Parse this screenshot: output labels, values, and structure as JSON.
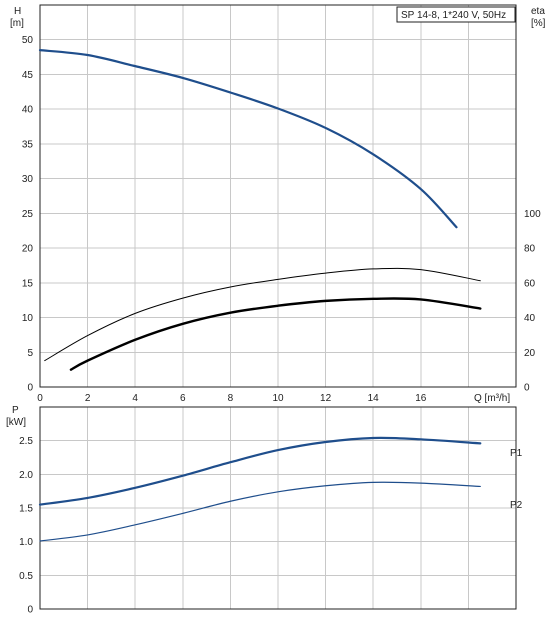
{
  "chart_data": [
    {
      "type": "line",
      "title": "SP 14-8, 1*240 V, 50Hz",
      "xlabel": "Q [m³/h]",
      "ylabel_left_symbol": "H",
      "ylabel_left_unit": "[m]",
      "ylabel_right_symbol": "eta",
      "ylabel_right_unit": "[%]",
      "xlim": [
        0,
        20
      ],
      "ylim_left": [
        0,
        55
      ],
      "ylim_right": [
        0,
        220
      ],
      "x_ticks": [
        "0",
        "2",
        "4",
        "6",
        "8",
        "10",
        "12",
        "14",
        "16"
      ],
      "y_ticks_left": [
        "0",
        "5",
        "10",
        "15",
        "20",
        "25",
        "30",
        "35",
        "40",
        "45",
        "50"
      ],
      "y_ticks_right": [
        "0",
        "20",
        "40",
        "60",
        "80",
        "100"
      ],
      "grid": true,
      "series": [
        {
          "color": "#1f4e8c",
          "axis": "left",
          "x": [
            0,
            2,
            4,
            6,
            8,
            10,
            12,
            14,
            16,
            17.5
          ],
          "y": [
            48.5,
            47.8,
            46.2,
            44.5,
            42.4,
            40.1,
            37.3,
            33.5,
            28.5,
            23.0
          ]
        },
        {
          "color": "#000000",
          "axis": "left",
          "x": [
            0.2,
            2,
            4,
            6,
            8,
            10,
            12,
            14,
            16,
            18.5
          ],
          "y": [
            3.8,
            7.4,
            10.6,
            12.8,
            14.4,
            15.5,
            16.4,
            17.0,
            16.9,
            15.3
          ]
        },
        {
          "color": "#000000",
          "axis": "left",
          "x": [
            1.3,
            2,
            4,
            6,
            8,
            10,
            12,
            14,
            16,
            18.5
          ],
          "y": [
            2.5,
            3.8,
            6.8,
            9.1,
            10.7,
            11.7,
            12.4,
            12.7,
            12.6,
            11.3
          ]
        }
      ]
    },
    {
      "type": "line",
      "ylabel_symbol": "P",
      "ylabel_unit": "[kW]",
      "xlim": [
        0,
        20
      ],
      "ylim": [
        0,
        3.0
      ],
      "y_ticks": [
        "0",
        "0.5",
        "1.0",
        "1.5",
        "2.0",
        "2.5"
      ],
      "grid": true,
      "series": [
        {
          "name": "P1",
          "color": "#1f4e8c",
          "x": [
            0,
            2,
            4,
            6,
            8,
            10,
            12,
            14,
            16,
            18.5
          ],
          "y": [
            1.55,
            1.65,
            1.8,
            1.98,
            2.18,
            2.36,
            2.48,
            2.54,
            2.52,
            2.46
          ]
        },
        {
          "name": "P2",
          "color": "#1f4e8c",
          "x": [
            0,
            2,
            4,
            6,
            8,
            10,
            12,
            14,
            16,
            18.5
          ],
          "y": [
            1.01,
            1.1,
            1.25,
            1.42,
            1.6,
            1.74,
            1.83,
            1.88,
            1.87,
            1.82
          ]
        }
      ]
    }
  ]
}
